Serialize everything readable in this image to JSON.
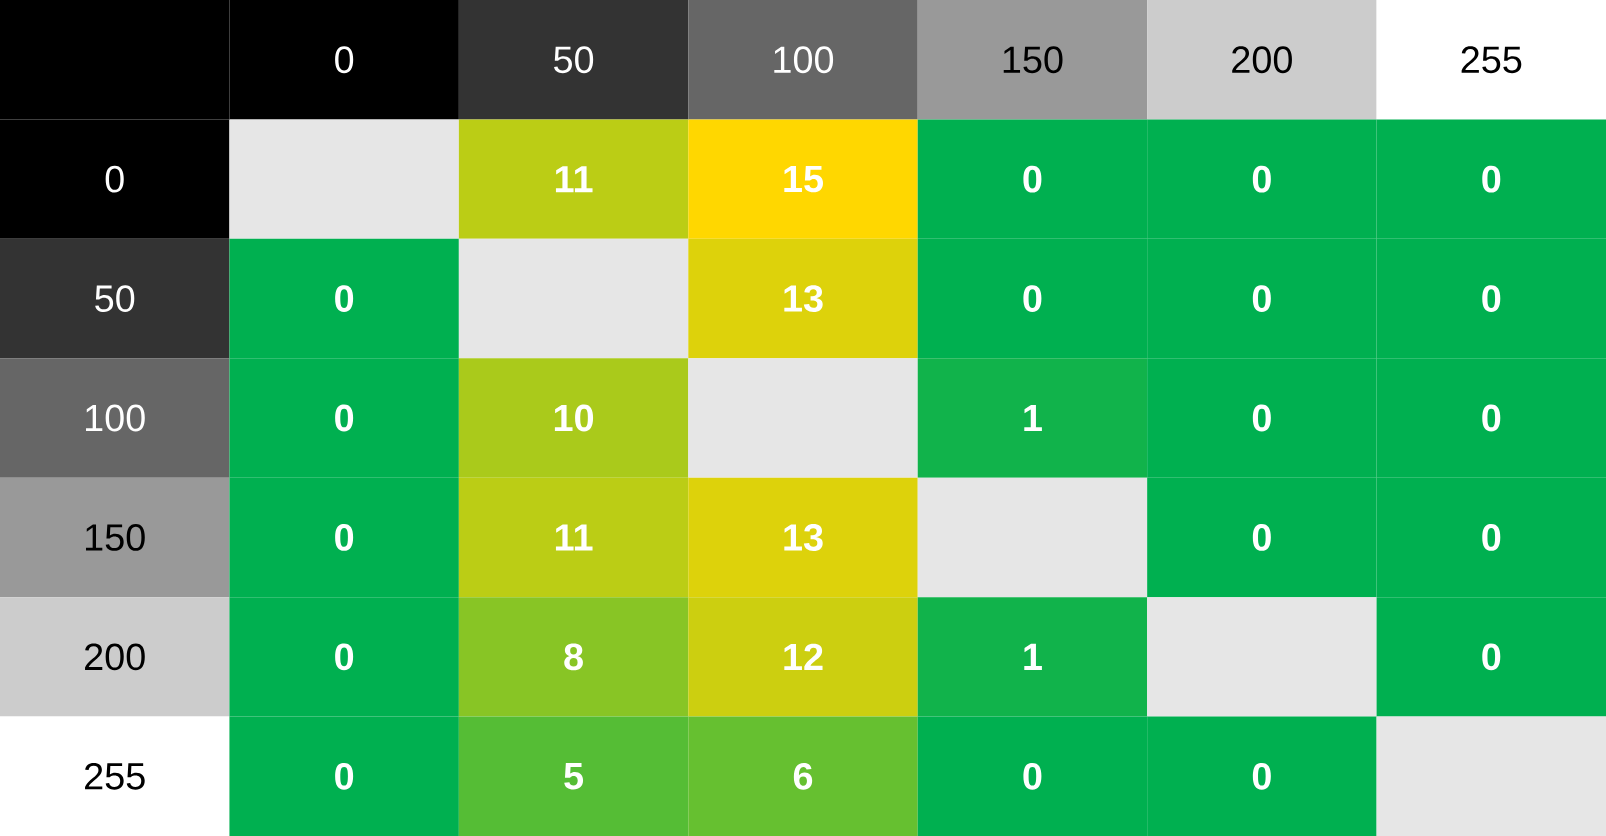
{
  "chart_data": {
    "type": "heatmap",
    "categories": [
      "0",
      "50",
      "100",
      "150",
      "200",
      "255"
    ],
    "y_categories": [
      "0",
      "50",
      "100",
      "150",
      "200",
      "255"
    ],
    "cells": [
      [
        null,
        11,
        15,
        0,
        0,
        0
      ],
      [
        0,
        null,
        13,
        0,
        0,
        0
      ],
      [
        0,
        10,
        null,
        1,
        0,
        0
      ],
      [
        0,
        11,
        13,
        null,
        0,
        0
      ],
      [
        0,
        8,
        12,
        1,
        null,
        0
      ],
      [
        0,
        5,
        6,
        0,
        0,
        null
      ]
    ],
    "data_labels": true
  }
}
